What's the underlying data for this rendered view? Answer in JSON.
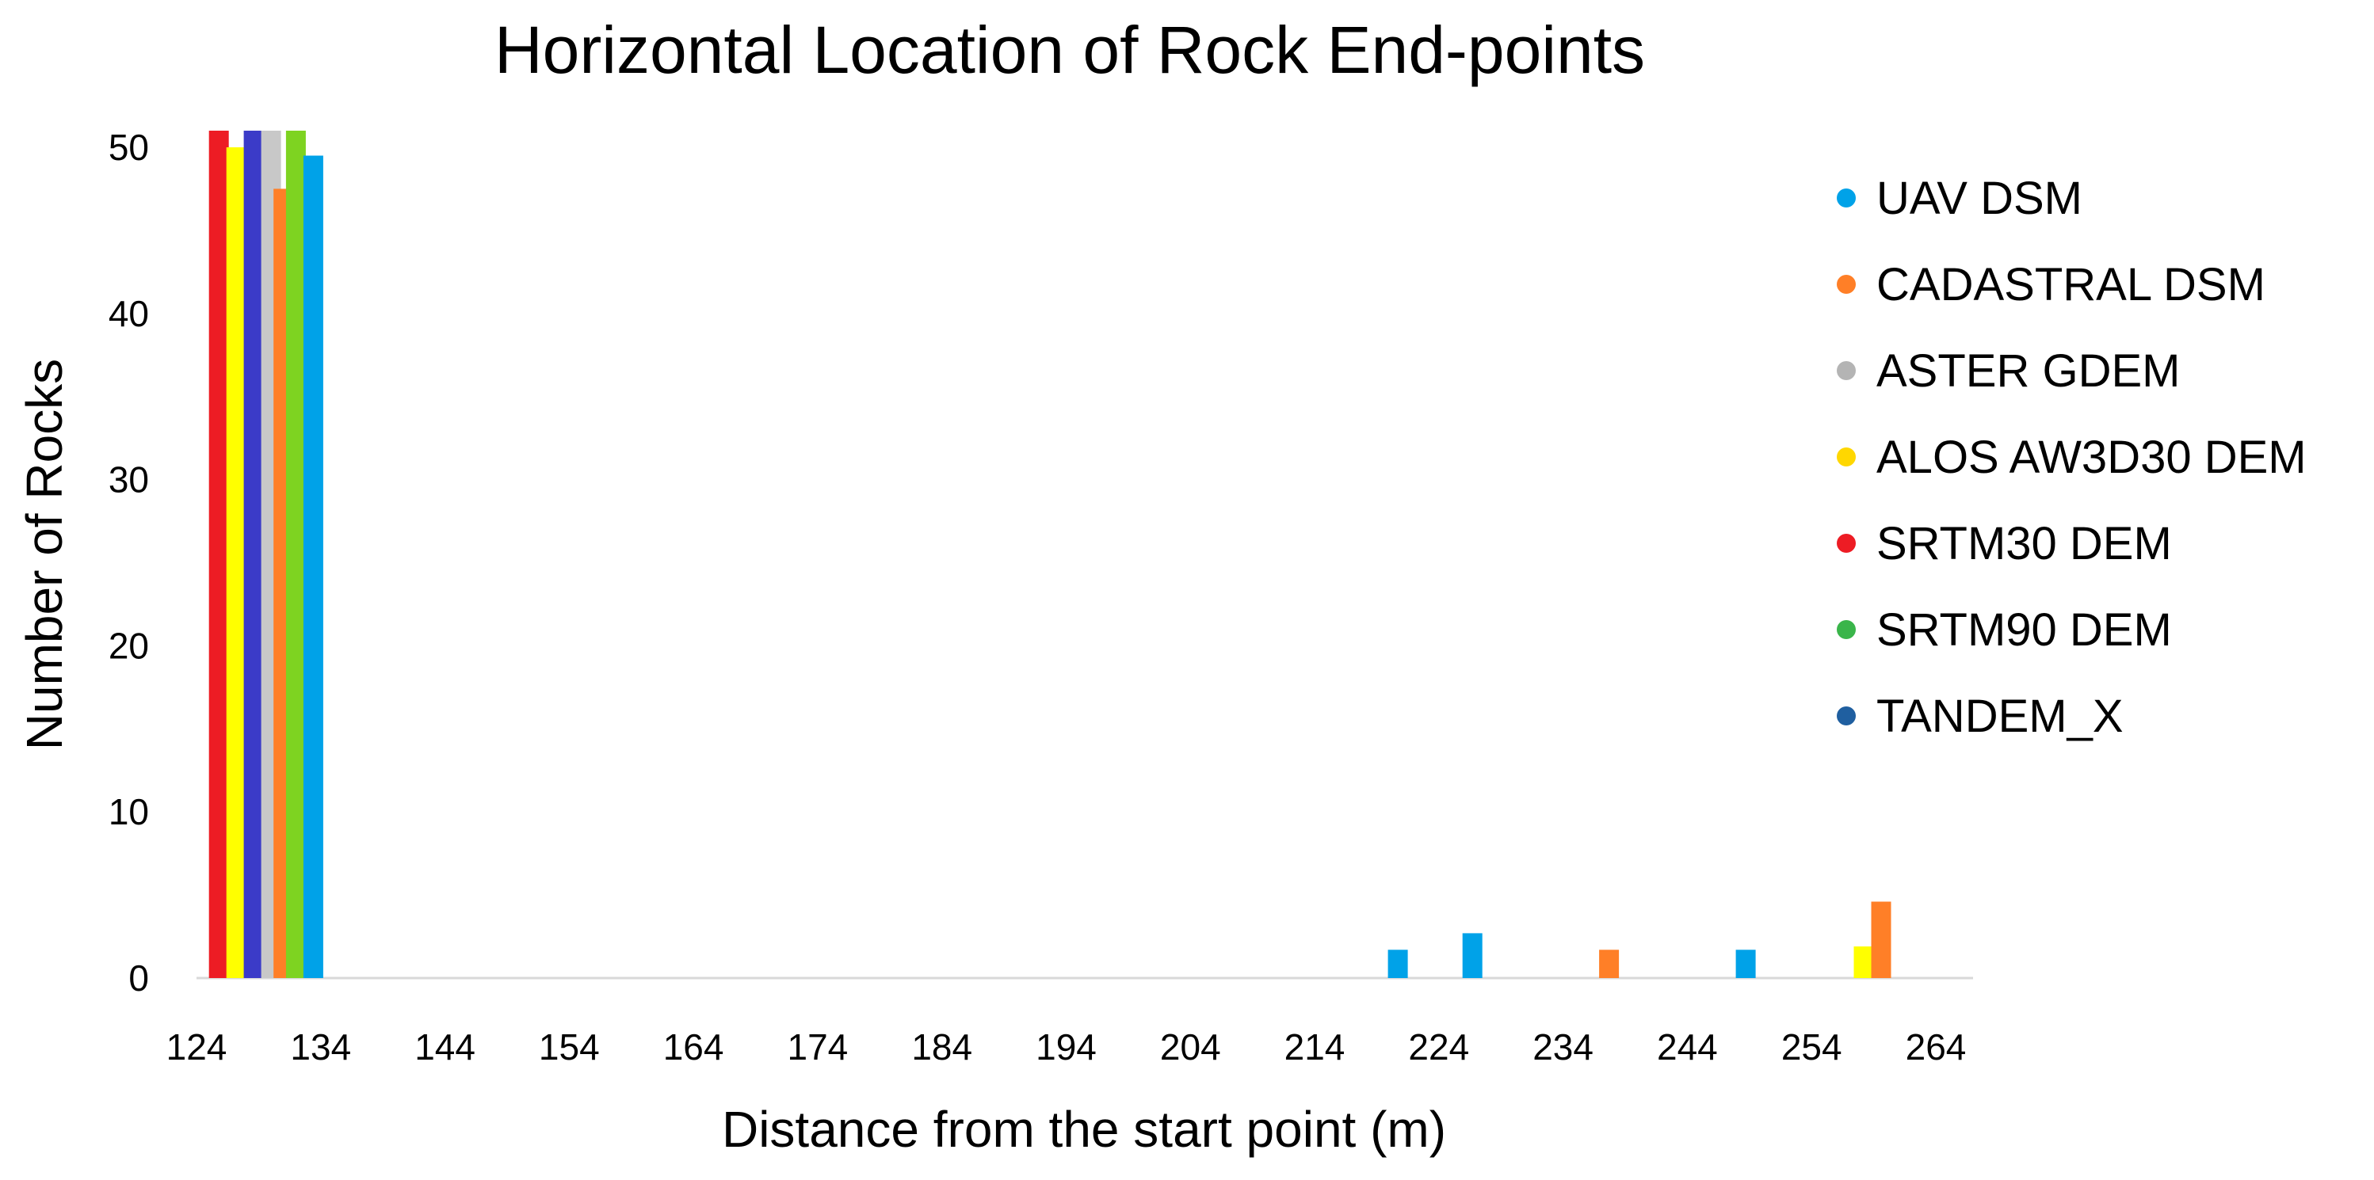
{
  "chart_data": {
    "type": "bar",
    "title": "Horizontal Location of Rock End-points",
    "xlabel": "Distance from the start point (m)",
    "ylabel": "Number of Rocks",
    "x_ticks": [
      "124",
      "134",
      "144",
      "154",
      "164",
      "174",
      "184",
      "194",
      "204",
      "214",
      "224",
      "234",
      "244",
      "254",
      "264"
    ],
    "y_ticks": [
      "0",
      "10",
      "20",
      "30",
      "40",
      "50"
    ],
    "xlim": [
      124,
      267
    ],
    "ylim": [
      0,
      50
    ],
    "grid": false,
    "legend_position": "right",
    "legend": [
      {
        "name": "UAV DSM",
        "color": "#00a2e8"
      },
      {
        "name": "CADASTRAL DSM",
        "color": "#ff7f27"
      },
      {
        "name": "ASTER GDEM",
        "color": "#b4b4b4"
      },
      {
        "name": "ALOS AW3D30 DEM",
        "color": "#ffd700"
      },
      {
        "name": "SRTM30 DEM",
        "color": "#ed1c24"
      },
      {
        "name": "SRTM90 DEM",
        "color": "#3ab54a"
      },
      {
        "name": "TANDEM_X",
        "color": "#1f5fa0"
      }
    ],
    "bars": [
      {
        "x": 125.8,
        "value": 51,
        "color": "#ed1c24"
      },
      {
        "x": 127.2,
        "value": 50,
        "color": "#ffff00"
      },
      {
        "x": 128.6,
        "value": 51,
        "color": "#3b3bc8"
      },
      {
        "x": 130.0,
        "value": 51,
        "color": "#c8c8c8"
      },
      {
        "x": 131.0,
        "value": 47.5,
        "color": "#ff7f27"
      },
      {
        "x": 132.0,
        "value": 51,
        "color": "#7ed321"
      },
      {
        "x": 133.4,
        "value": 49.5,
        "color": "#00a2e8"
      },
      {
        "x": 220.7,
        "value": 1.7,
        "color": "#00a2e8"
      },
      {
        "x": 226.7,
        "value": 2.7,
        "color": "#00a2e8"
      },
      {
        "x": 237.7,
        "value": 1.7,
        "color": "#ff7f27"
      },
      {
        "x": 248.7,
        "value": 1.7,
        "color": "#00a2e8"
      },
      {
        "x": 258.2,
        "value": 1.9,
        "color": "#ffff00"
      },
      {
        "x": 259.6,
        "value": 4.6,
        "color": "#ff7f27"
      }
    ]
  }
}
